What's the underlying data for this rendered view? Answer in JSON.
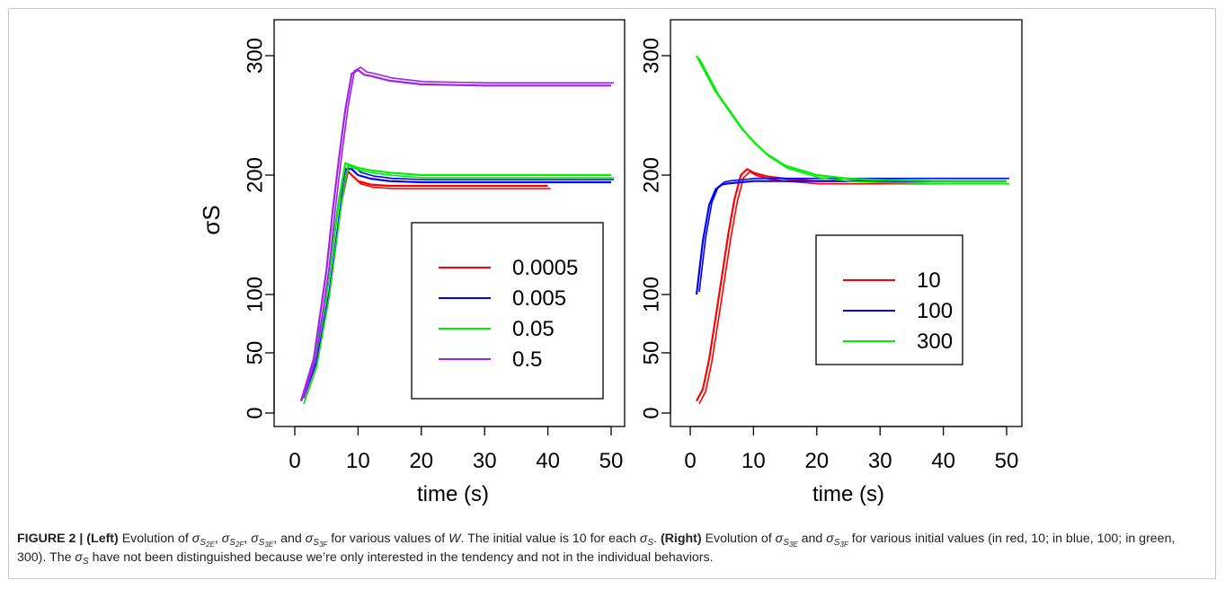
{
  "chart_data": [
    {
      "type": "line",
      "panel": "left",
      "xlabel": "time (s)",
      "ylabel": "σS",
      "xlim": [
        0,
        50
      ],
      "ylim": [
        0,
        310
      ],
      "x_ticks": [
        "0",
        "10",
        "20",
        "30",
        "40",
        "50"
      ],
      "y_ticks": [
        "0",
        "50",
        "100",
        "200",
        "300"
      ],
      "legend_position": "bottom-right",
      "series": [
        {
          "name": "0.0005",
          "color": "#ff0000",
          "x": [
            1,
            3,
            5,
            6,
            7,
            8,
            9,
            10,
            12,
            15,
            20,
            30,
            40
          ],
          "y": [
            10,
            40,
            100,
            140,
            180,
            205,
            200,
            195,
            192,
            191,
            191,
            191,
            191
          ]
        },
        {
          "name": "0.005",
          "color": "#0000ff",
          "x": [
            1,
            3,
            5,
            6,
            7,
            8,
            9,
            10,
            12,
            15,
            20,
            30,
            40,
            50
          ],
          "y": [
            10,
            40,
            100,
            140,
            180,
            205,
            205,
            200,
            197,
            195,
            194,
            194,
            194,
            194
          ]
        },
        {
          "name": "0.05",
          "color": "#00ee00",
          "x": [
            1,
            3,
            5,
            6,
            7,
            8,
            9,
            10,
            12,
            15,
            20,
            30,
            40,
            50
          ],
          "y": [
            10,
            40,
            100,
            140,
            180,
            210,
            208,
            206,
            204,
            202,
            200,
            200,
            200,
            200
          ]
        },
        {
          "name": "0.5",
          "color": "#a020f0",
          "x": [
            1,
            3,
            5,
            6,
            7,
            8,
            9,
            10,
            11,
            12,
            15,
            20,
            30,
            40,
            50
          ],
          "y": [
            10,
            45,
            120,
            170,
            215,
            255,
            285,
            288,
            284,
            283,
            279,
            276,
            275,
            275,
            275
          ]
        }
      ]
    },
    {
      "type": "line",
      "panel": "right",
      "xlabel": "time (s)",
      "ylabel": "",
      "xlim": [
        0,
        50
      ],
      "ylim": [
        0,
        310
      ],
      "x_ticks": [
        "0",
        "10",
        "20",
        "30",
        "40",
        "50"
      ],
      "y_ticks": [
        "0",
        "50",
        "100",
        "200",
        "300"
      ],
      "legend_position": "bottom-center",
      "series": [
        {
          "name": "10",
          "color": "#ff0000",
          "x": [
            1,
            2,
            3,
            4,
            5,
            6,
            7,
            8,
            9,
            10,
            12,
            15,
            20,
            30,
            40,
            50
          ],
          "y": [
            10,
            20,
            45,
            80,
            115,
            150,
            180,
            200,
            205,
            202,
            199,
            197,
            195,
            195,
            195,
            195
          ]
        },
        {
          "name": "100",
          "color": "#0000ff",
          "x": [
            1,
            2,
            3,
            4,
            5,
            6,
            8,
            10,
            15,
            20,
            30,
            40,
            50
          ],
          "y": [
            100,
            145,
            175,
            188,
            192,
            193,
            194,
            195,
            195,
            195,
            195,
            195,
            195
          ]
        },
        {
          "name": "300",
          "color": "#00ee00",
          "x": [
            1,
            2,
            4,
            6,
            8,
            10,
            12,
            15,
            20,
            25,
            30,
            40,
            50
          ],
          "y": [
            300,
            290,
            270,
            255,
            240,
            228,
            218,
            208,
            200,
            197,
            196,
            195,
            195
          ]
        }
      ]
    }
  ],
  "caption": {
    "figure_label": "FIGURE 2 | ",
    "left_tag": "(Left)",
    "text_1": " Evolution of ",
    "text_2": " for various values of ",
    "w": "W",
    "text_3": ". The initial value is 10 for each ",
    "right_tag": "(Right)",
    "text_4": " Evolution of ",
    "and": " and ",
    "text_5": " for various initial values (in red, 10; in blue, 100; in green, 300). The ",
    "text_6": " have not been distinguished because we’re only interested in the tendency and not in the individual behaviors."
  }
}
